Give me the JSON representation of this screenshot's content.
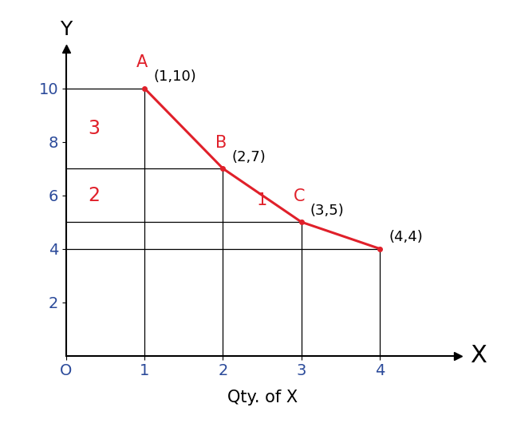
{
  "chart_data": {
    "type": "line",
    "x": [
      1,
      2,
      3,
      4
    ],
    "values": [
      10,
      7,
      5,
      4
    ],
    "point_names": [
      "A",
      "B",
      "C",
      null
    ],
    "point_labels": [
      "(1,10)",
      "(2,7)",
      "(3,5)",
      "(4,4)"
    ],
    "color": "#e0202a",
    "xlabel": "Qty. of X",
    "x_axis_name": "X",
    "y_axis_name": "Y",
    "xlim": [
      0,
      5
    ],
    "ylim": [
      0,
      11.5
    ],
    "xticks": [
      {
        "value": 0,
        "label": "O"
      },
      1,
      2,
      3,
      4
    ],
    "yticks": [
      2,
      4,
      6,
      8,
      10
    ],
    "grid": false,
    "annotations": [
      {
        "text": "3",
        "from_point": 0,
        "to_point": 1,
        "axis": "y"
      },
      {
        "text": "2",
        "from_point": 1,
        "to_point": 2,
        "axis": "y"
      },
      {
        "text": "1",
        "from_point": 1,
        "to_point": 2,
        "axis": "x"
      }
    ]
  }
}
